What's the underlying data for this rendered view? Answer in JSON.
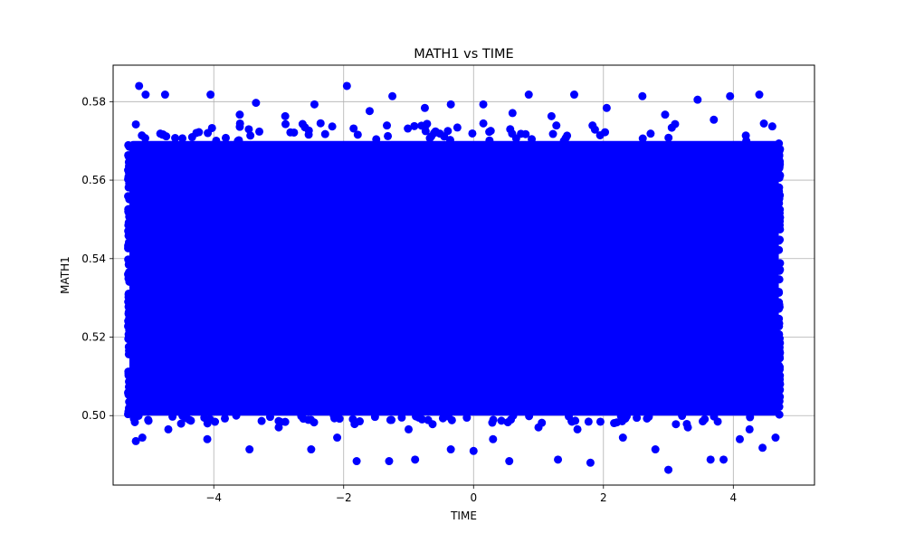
{
  "chart_data": {
    "type": "scatter",
    "title": "MATH1 vs TIME",
    "xlabel": "TIME",
    "ylabel": "MATH1",
    "xlim": [
      -5.55,
      5.25
    ],
    "ylim": [
      0.4823,
      0.5893
    ],
    "xticks": [
      -4,
      -2,
      0,
      2,
      4
    ],
    "xtick_labels": [
      "−4",
      "−2",
      "0",
      "2",
      "4"
    ],
    "yticks": [
      0.5,
      0.52,
      0.54,
      0.56,
      0.58
    ],
    "ytick_labels": [
      "0.50",
      "0.52",
      "0.54",
      "0.56",
      "0.58"
    ],
    "grid": true,
    "marker_color": "#0000ff",
    "dense_region": {
      "x_range": [
        -5.3,
        4.7
      ],
      "y_range": [
        0.5,
        0.57
      ]
    },
    "series": [
      {
        "points": [
          [
            -5.15,
            0.584
          ],
          [
            -1.95,
            0.584
          ],
          [
            -4.75,
            0.5818
          ],
          [
            -4.05,
            0.5818
          ],
          [
            -5.05,
            0.5818
          ],
          [
            -1.25,
            0.5814
          ],
          [
            0.85,
            0.5818
          ],
          [
            1.55,
            0.5818
          ],
          [
            2.6,
            0.5814
          ],
          [
            3.95,
            0.5814
          ],
          [
            4.4,
            0.5818
          ],
          [
            -3.35,
            0.5797
          ],
          [
            -2.45,
            0.5793
          ],
          [
            -0.35,
            0.5793
          ],
          [
            0.15,
            0.5793
          ],
          [
            3.45,
            0.5805
          ],
          [
            -5.2,
            0.5742
          ],
          [
            -3.6,
            0.5767
          ],
          [
            -2.9,
            0.5763
          ],
          [
            -1.6,
            0.5776
          ],
          [
            -0.75,
            0.5784
          ],
          [
            0.6,
            0.5771
          ],
          [
            1.2,
            0.5763
          ],
          [
            2.05,
            0.5784
          ],
          [
            2.95,
            0.5767
          ],
          [
            3.7,
            0.5754
          ],
          [
            4.6,
            0.5737
          ],
          [
            -5.2,
            0.4935
          ],
          [
            -5.1,
            0.4944
          ],
          [
            -3.45,
            0.4914
          ],
          [
            -2.5,
            0.4914
          ],
          [
            -1.8,
            0.4884
          ],
          [
            -1.3,
            0.4884
          ],
          [
            -0.9,
            0.4888
          ],
          [
            -0.35,
            0.4914
          ],
          [
            0.0,
            0.491
          ],
          [
            0.55,
            0.4884
          ],
          [
            1.3,
            0.4888
          ],
          [
            1.8,
            0.488
          ],
          [
            2.8,
            0.4914
          ],
          [
            3.0,
            0.4862
          ],
          [
            3.65,
            0.4888
          ],
          [
            3.85,
            0.4888
          ],
          [
            4.1,
            0.494
          ],
          [
            4.45,
            0.4918
          ],
          [
            4.65,
            0.4944
          ],
          [
            -4.7,
            0.4965
          ],
          [
            -4.1,
            0.494
          ],
          [
            -3.0,
            0.497
          ],
          [
            -2.1,
            0.4944
          ],
          [
            -1.0,
            0.4965
          ],
          [
            0.3,
            0.494
          ],
          [
            1.0,
            0.497
          ],
          [
            1.6,
            0.4965
          ],
          [
            2.3,
            0.4944
          ],
          [
            3.3,
            0.497
          ],
          [
            4.25,
            0.4965
          ]
        ]
      }
    ]
  }
}
